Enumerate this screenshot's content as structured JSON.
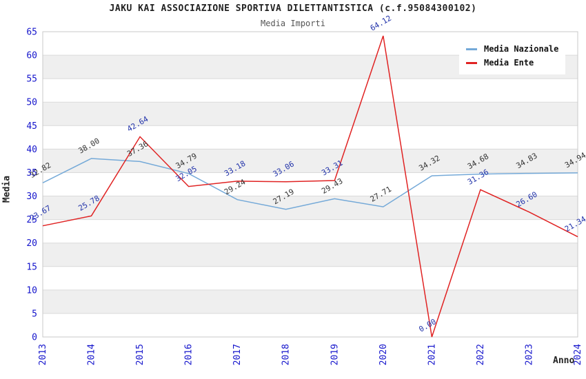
{
  "header": {
    "title": "JAKU KAI ASSOCIAZIONE SPORTIVA DILETTANTISTICA (c.f.95084300102)",
    "subtitle": "Media Importi"
  },
  "axes": {
    "y_label": "Media",
    "x_label": "Anno"
  },
  "colors": {
    "tick_label": "#1515cc",
    "band_gray": "#efefef",
    "band_white": "#ffffff",
    "gridline": "#dadada",
    "plot_border": "#c9c9c9",
    "nazionale_line": "#74a9d8",
    "ente_line": "#e02222",
    "nazionale_label": "#333333",
    "ente_label": "#2233aa"
  },
  "chart_data": {
    "type": "line",
    "title": "JAKU KAI ASSOCIAZIONE SPORTIVA DILETTANTISTICA (c.f.95084300102)",
    "subtitle": "Media Importi",
    "xlabel": "Anno",
    "ylabel": "Media",
    "x": [
      2013,
      2014,
      2015,
      2016,
      2017,
      2018,
      2019,
      2020,
      2021,
      2022,
      2023,
      2024
    ],
    "ylim": [
      0,
      65
    ],
    "y_tick_step": 5,
    "grid": "horizontal-bands-alternating",
    "legend_position": "top-right",
    "point_labels_shown": true,
    "series": [
      {
        "name": "Media Nazionale",
        "color": "#74a9d8",
        "label_color": "#333333",
        "values": [
          32.82,
          38.0,
          37.36,
          34.79,
          29.24,
          27.19,
          29.43,
          27.71,
          34.32,
          34.68,
          34.83,
          34.94
        ]
      },
      {
        "name": "Media Ente",
        "color": "#e02222",
        "label_color": "#2233aa",
        "values": [
          23.67,
          25.78,
          42.64,
          32.05,
          33.18,
          33.06,
          33.31,
          64.12,
          0.0,
          31.36,
          26.6,
          21.34
        ]
      }
    ]
  }
}
